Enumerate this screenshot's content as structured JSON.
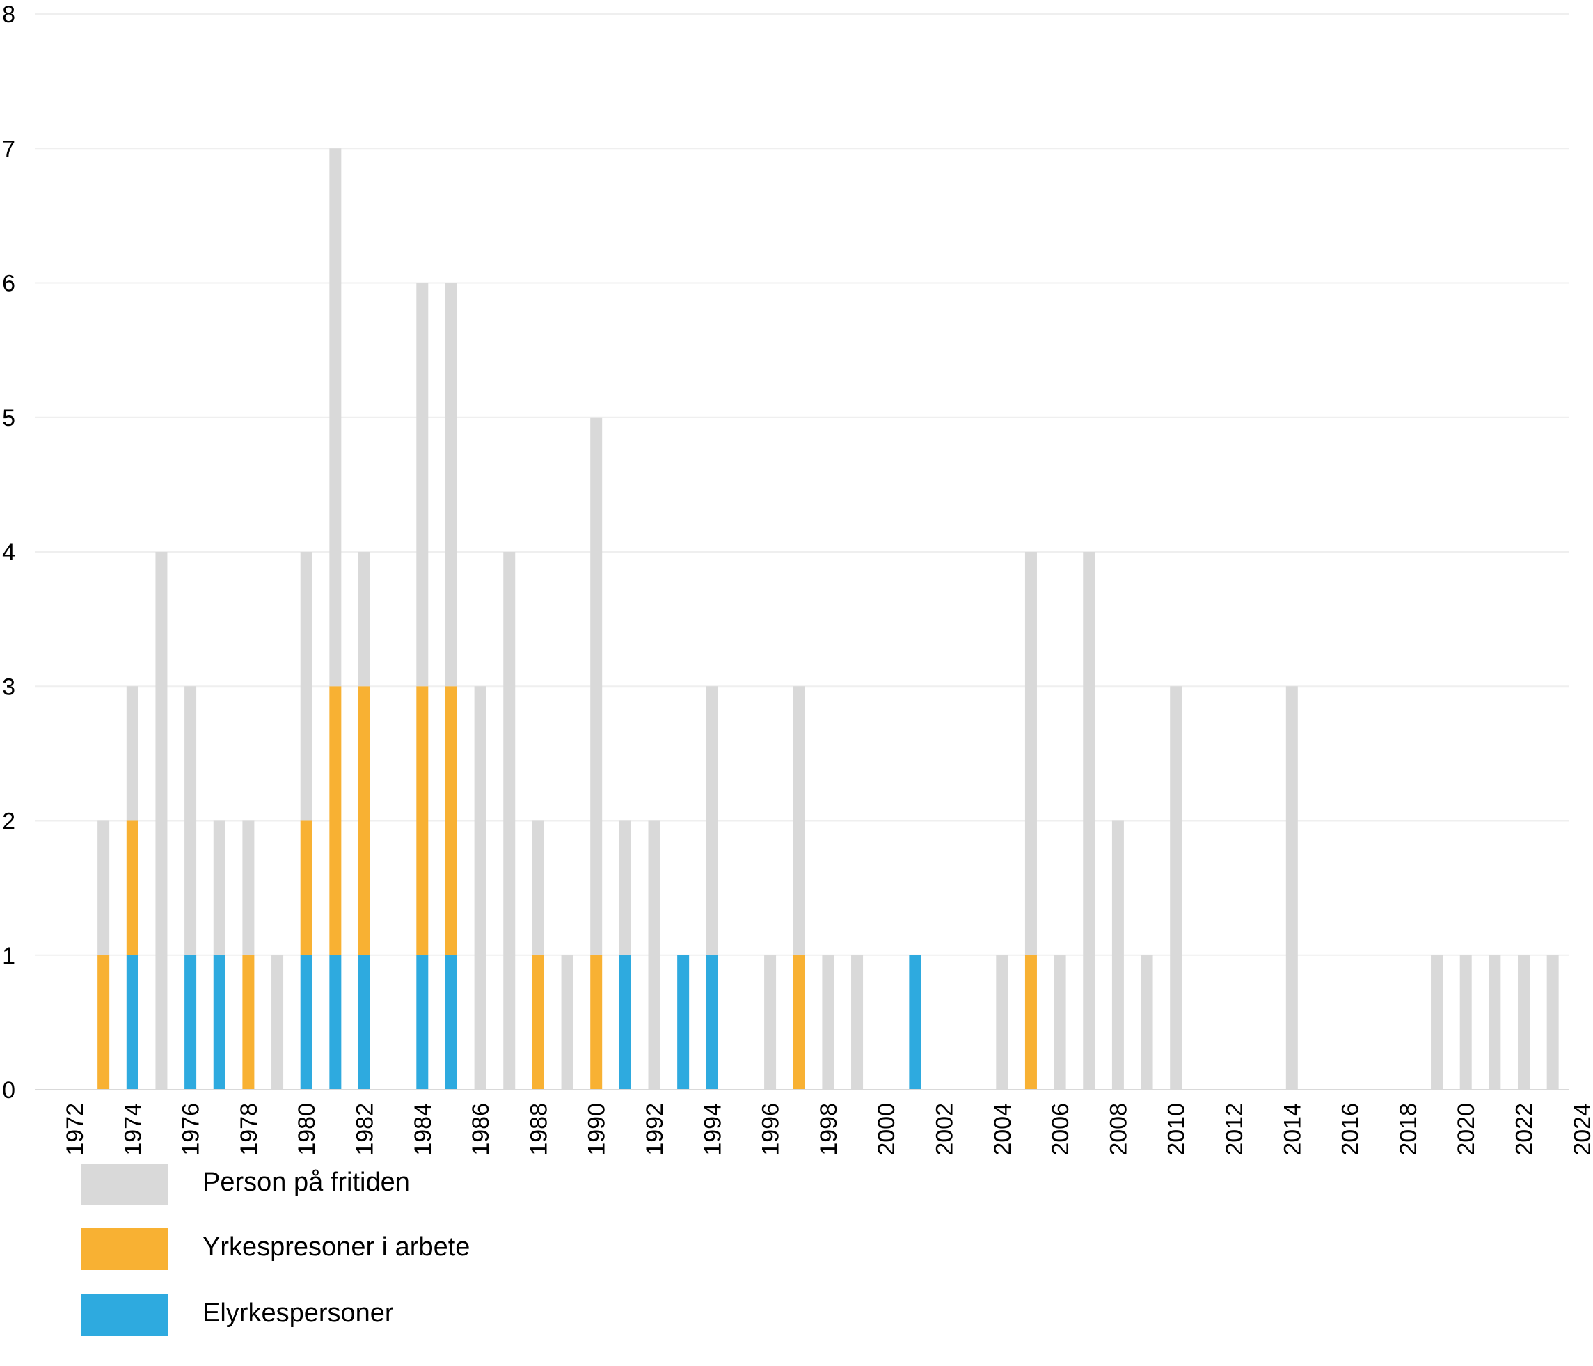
{
  "chart_data": {
    "type": "bar",
    "stacked": true,
    "title": "",
    "xlabel": "",
    "ylabel": "",
    "ylim": [
      0,
      8
    ],
    "yticks": [
      0,
      1,
      2,
      3,
      4,
      5,
      6,
      7,
      8
    ],
    "grid": true,
    "legend_position": "bottom-left",
    "x_tick_labels": [
      "1972",
      "1974",
      "1976",
      "1978",
      "1980",
      "1982",
      "1984",
      "1986",
      "1988",
      "1990",
      "1992",
      "1994",
      "1996",
      "1998",
      "2000",
      "2002",
      "2004",
      "2006",
      "2008",
      "2010",
      "2012",
      "2014",
      "2016",
      "2018",
      "2020",
      "2022",
      "2024"
    ],
    "categories": [
      1972,
      1973,
      1974,
      1975,
      1976,
      1977,
      1978,
      1979,
      1980,
      1981,
      1982,
      1983,
      1984,
      1985,
      1986,
      1987,
      1988,
      1989,
      1990,
      1991,
      1992,
      1993,
      1994,
      1995,
      1996,
      1997,
      1998,
      1999,
      2000,
      2001,
      2002,
      2003,
      2004,
      2005,
      2006,
      2007,
      2008,
      2009,
      2010,
      2011,
      2012,
      2013,
      2014,
      2015,
      2016,
      2017,
      2018,
      2019,
      2020,
      2021,
      2022,
      2023
    ],
    "series": [
      {
        "name": "Elyrkespersoner",
        "color": "#2EAADF",
        "values": [
          0,
          0,
          1,
          0,
          1,
          1,
          0,
          0,
          1,
          1,
          1,
          0,
          1,
          1,
          0,
          0,
          0,
          0,
          0,
          1,
          0,
          1,
          1,
          0,
          0,
          0,
          0,
          0,
          0,
          1,
          0,
          0,
          0,
          0,
          0,
          0,
          0,
          0,
          0,
          0,
          0,
          0,
          0,
          0,
          0,
          0,
          0,
          0,
          0,
          0,
          0,
          0
        ]
      },
      {
        "name": "Yrkespresoner i arbete",
        "color": "#F8B133",
        "values": [
          0,
          1,
          1,
          0,
          0,
          0,
          1,
          0,
          1,
          2,
          2,
          0,
          2,
          2,
          0,
          0,
          1,
          0,
          1,
          0,
          0,
          0,
          0,
          0,
          0,
          1,
          0,
          0,
          0,
          0,
          0,
          0,
          0,
          1,
          0,
          0,
          0,
          0,
          0,
          0,
          0,
          0,
          0,
          0,
          0,
          0,
          0,
          0,
          0,
          0,
          0,
          0
        ]
      },
      {
        "name": "Person på fritiden",
        "color": "#D9D9D9",
        "values": [
          0,
          1,
          1,
          4,
          2,
          1,
          1,
          1,
          2,
          4,
          1,
          0,
          3,
          3,
          3,
          4,
          1,
          1,
          4,
          1,
          2,
          0,
          2,
          0,
          1,
          2,
          1,
          1,
          0,
          0,
          0,
          0,
          1,
          3,
          1,
          4,
          2,
          1,
          3,
          0,
          0,
          0,
          3,
          0,
          0,
          0,
          0,
          1,
          1,
          1,
          1,
          1
        ]
      }
    ]
  },
  "legend": {
    "items": [
      {
        "label": "Person på fritiden",
        "color": "#D9D9D9"
      },
      {
        "label": "Yrkespresoner i arbete",
        "color": "#F8B133"
      },
      {
        "label": "Elyrkespersoner",
        "color": "#2EAADF"
      }
    ]
  }
}
